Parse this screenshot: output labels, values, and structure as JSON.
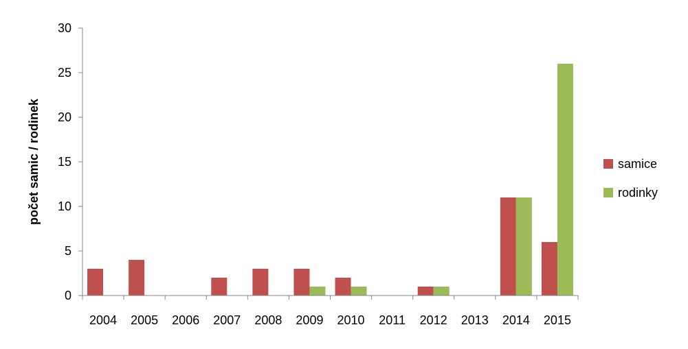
{
  "chart_data": {
    "type": "bar",
    "categories": [
      "2004",
      "2005",
      "2006",
      "2007",
      "2008",
      "2009",
      "2010",
      "2011",
      "2012",
      "2013",
      "2014",
      "2015"
    ],
    "series": [
      {
        "name": "samice",
        "color": "#c0504d",
        "values": [
          3,
          4,
          0,
          2,
          3,
          3,
          2,
          0,
          1,
          0,
          11,
          6
        ]
      },
      {
        "name": "rodinky",
        "color": "#9bbb59",
        "values": [
          0,
          0,
          0,
          0,
          0,
          1,
          1,
          0,
          1,
          0,
          11,
          26
        ]
      }
    ],
    "title": "",
    "xlabel": "",
    "ylabel": "počet samic / rodinek",
    "ylim": [
      0,
      30
    ],
    "yticks": [
      "0",
      "5",
      "10",
      "15",
      "20",
      "25",
      "30"
    ],
    "grid": false,
    "legend_position": "right"
  }
}
